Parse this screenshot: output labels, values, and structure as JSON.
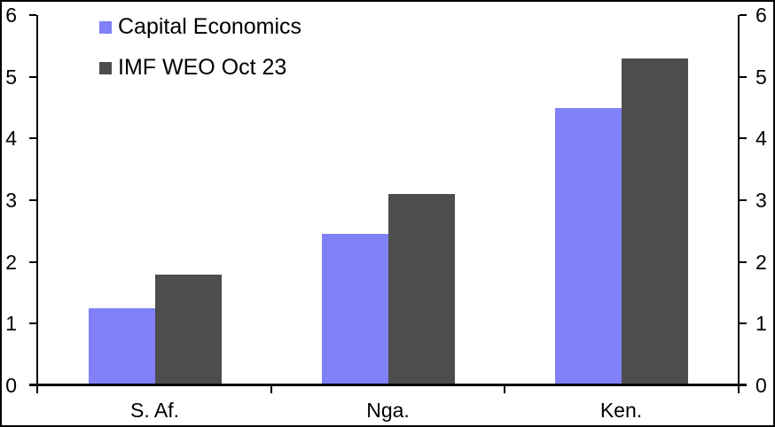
{
  "chart_data": {
    "type": "bar",
    "title": "",
    "xlabel": "",
    "ylabel": "",
    "categories": [
      "S. Af.",
      "Nga.",
      "Ken."
    ],
    "series": [
      {
        "name": "Capital Economics",
        "color": "#8080f8",
        "values": [
          1.25,
          2.45,
          4.5
        ]
      },
      {
        "name": "IMF WEO Oct 23",
        "color": "#4d4d4d",
        "values": [
          1.8,
          3.1,
          5.3
        ]
      }
    ],
    "ylim": [
      0,
      6
    ],
    "yticks": [
      0,
      1,
      2,
      3,
      4,
      5,
      6
    ],
    "dual_value_axes": true,
    "grid": false,
    "legend_position": "top-left",
    "axis_color": "#000000",
    "background_color": "#ffffff"
  }
}
